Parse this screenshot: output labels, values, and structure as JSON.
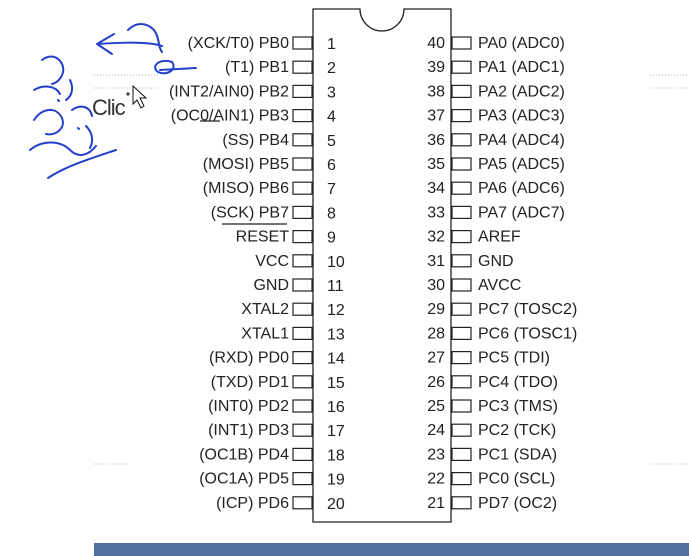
{
  "colors": {
    "chip_stroke": "#222222",
    "text": "#222222",
    "ink": "#2340c8",
    "slide_bar": "#4f6f9f"
  },
  "background_word": "Clic",
  "left_pins": [
    {
      "num": "1",
      "label": "(XCK/T0)  PB0"
    },
    {
      "num": "2",
      "label": "(T1)  PB1"
    },
    {
      "num": "3",
      "label": "(INT2/AIN0)  PB2"
    },
    {
      "num": "4",
      "label": "(OC0/AIN1)  PB3"
    },
    {
      "num": "5",
      "label": "(SS)  PB4"
    },
    {
      "num": "6",
      "label": "(MOSI)  PB5"
    },
    {
      "num": "7",
      "label": "(MISO)  PB6"
    },
    {
      "num": "8",
      "label": "(SCK)  PB7"
    },
    {
      "num": "9",
      "label": "RESET"
    },
    {
      "num": "10",
      "label": "VCC"
    },
    {
      "num": "11",
      "label": "GND"
    },
    {
      "num": "12",
      "label": "XTAL2"
    },
    {
      "num": "13",
      "label": "XTAL1"
    },
    {
      "num": "14",
      "label": "(RXD)  PD0"
    },
    {
      "num": "15",
      "label": "(TXD)  PD1"
    },
    {
      "num": "16",
      "label": "(INT0)  PD2"
    },
    {
      "num": "17",
      "label": "(INT1)  PD3"
    },
    {
      "num": "18",
      "label": "(OC1B)  PD4"
    },
    {
      "num": "19",
      "label": "(OC1A)  PD5"
    },
    {
      "num": "20",
      "label": "(ICP)  PD6"
    }
  ],
  "right_pins": [
    {
      "num": "40",
      "label": "PA0  (ADC0)"
    },
    {
      "num": "39",
      "label": "PA1  (ADC1)"
    },
    {
      "num": "38",
      "label": "PA2  (ADC2)"
    },
    {
      "num": "37",
      "label": "PA3  (ADC3)"
    },
    {
      "num": "36",
      "label": "PA4  (ADC4)"
    },
    {
      "num": "35",
      "label": "PA5  (ADC5)"
    },
    {
      "num": "34",
      "label": "PA6  (ADC6)"
    },
    {
      "num": "33",
      "label": "PA7  (ADC7)"
    },
    {
      "num": "32",
      "label": "AREF"
    },
    {
      "num": "31",
      "label": "GND"
    },
    {
      "num": "30",
      "label": "AVCC"
    },
    {
      "num": "29",
      "label": "PC7  (TOSC2)"
    },
    {
      "num": "28",
      "label": "PC6  (TOSC1)"
    },
    {
      "num": "27",
      "label": "PC5  (TDI)"
    },
    {
      "num": "26",
      "label": "PC4  (TDO)"
    },
    {
      "num": "25",
      "label": "PC3  (TMS)"
    },
    {
      "num": "24",
      "label": "PC2  (TCK)"
    },
    {
      "num": "23",
      "label": "PC1  (SDA)"
    },
    {
      "num": "22",
      "label": "PC0  (SCL)"
    },
    {
      "num": "21",
      "label": "PD7  (OC2)"
    }
  ]
}
